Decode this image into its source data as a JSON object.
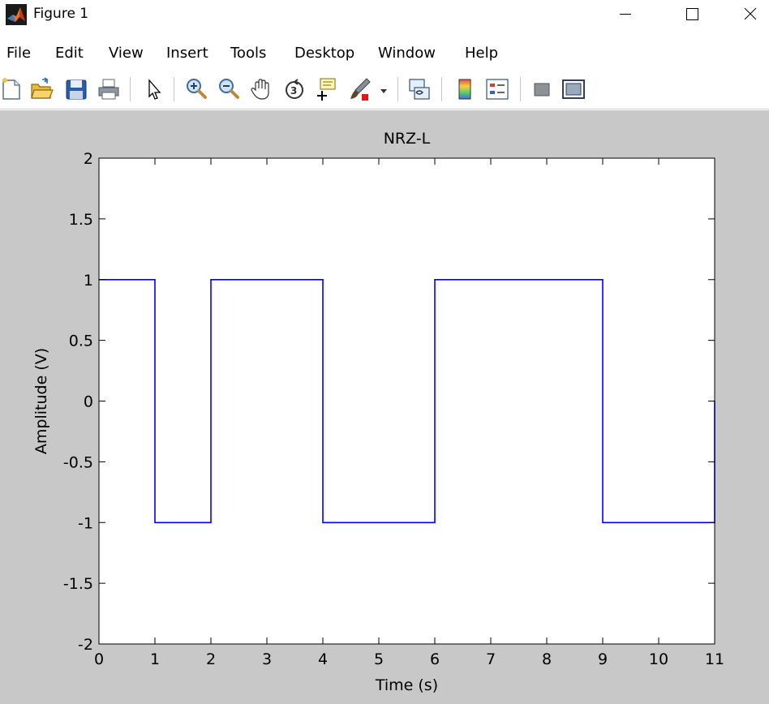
{
  "window": {
    "title": "Figure 1",
    "icon": "matlab-logo-icon"
  },
  "menu": {
    "items": [
      "File",
      "Edit",
      "View",
      "Insert",
      "Tools",
      "Desktop",
      "Window",
      "Help"
    ]
  },
  "toolbar": {
    "buttons": [
      "new-figure-icon",
      "open-file-icon",
      "save-icon",
      "print-icon",
      "edit-plot-arrow-icon",
      "zoom-in-icon",
      "zoom-out-icon",
      "pan-hand-icon",
      "rotate-3d-icon",
      "data-cursor-icon",
      "brush-icon",
      "brush-dropdown-icon",
      "link-plot-icon",
      "colorbar-icon",
      "legend-icon",
      "hide-plot-tools-icon",
      "show-plot-tools-icon"
    ]
  },
  "colors": {
    "figure_background": "#c8c8c8",
    "axes_background": "#ffffff",
    "line": "#0000ff"
  },
  "chart_data": {
    "type": "line",
    "title": "NRZ-L",
    "xlabel": "Time (s)",
    "ylabel": "Amplitude (V)",
    "xlim": [
      0,
      11
    ],
    "ylim": [
      -2,
      2
    ],
    "xticks": [
      0,
      1,
      2,
      3,
      4,
      5,
      6,
      7,
      8,
      9,
      10,
      11
    ],
    "yticks": [
      -2,
      -1.5,
      -1,
      -0.5,
      0,
      0.5,
      1,
      1.5,
      2
    ],
    "grid": false,
    "series": [
      {
        "color": "#0000ff",
        "x": [
          0,
          1,
          1,
          2,
          2,
          4,
          4,
          6,
          6,
          9,
          9,
          11,
          11
        ],
        "y": [
          1,
          1,
          -1,
          -1,
          1,
          1,
          -1,
          -1,
          1,
          1,
          -1,
          -1,
          0
        ]
      }
    ]
  }
}
